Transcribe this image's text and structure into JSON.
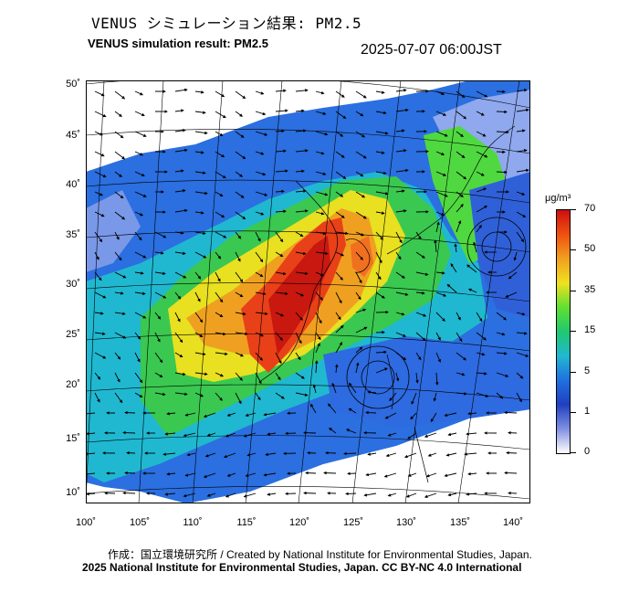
{
  "header": {
    "title_jp": "VENUS シミュレーション結果: PM2.5",
    "title_en": "VENUS simulation result: PM2.5",
    "timestamp": "2025-07-07 06:00JST"
  },
  "map": {
    "lat_labels": [
      "50˚",
      "45˚",
      "40˚",
      "35˚",
      "30˚",
      "25˚",
      "20˚",
      "15˚",
      "10˚"
    ],
    "lon_labels": [
      "100˚",
      "105˚",
      "110˚",
      "115˚",
      "120˚",
      "125˚",
      "130˚",
      "135˚",
      "140˚"
    ],
    "field": "PM2.5 concentration with wind vectors",
    "high_concentration_region": "North China Plain / Eastern China"
  },
  "colorbar": {
    "unit": "μg/m³",
    "ticks": [
      "70",
      "50",
      "35",
      "15",
      "5",
      "1",
      "0"
    ],
    "colors": [
      "#cc1010",
      "#f05010",
      "#f0a020",
      "#f0e020",
      "#60e030",
      "#20c870",
      "#20b8d0",
      "#2070e0",
      "#2040c0",
      "#8090e0",
      "#ffffff"
    ]
  },
  "footer": {
    "credit_line": "作成：国立環境研究所 / Created by National Institute for Environmental Studies, Japan.",
    "license_line": "2025 National Institute for Environmental Studies, Japan. CC BY-NC 4.0 International"
  }
}
